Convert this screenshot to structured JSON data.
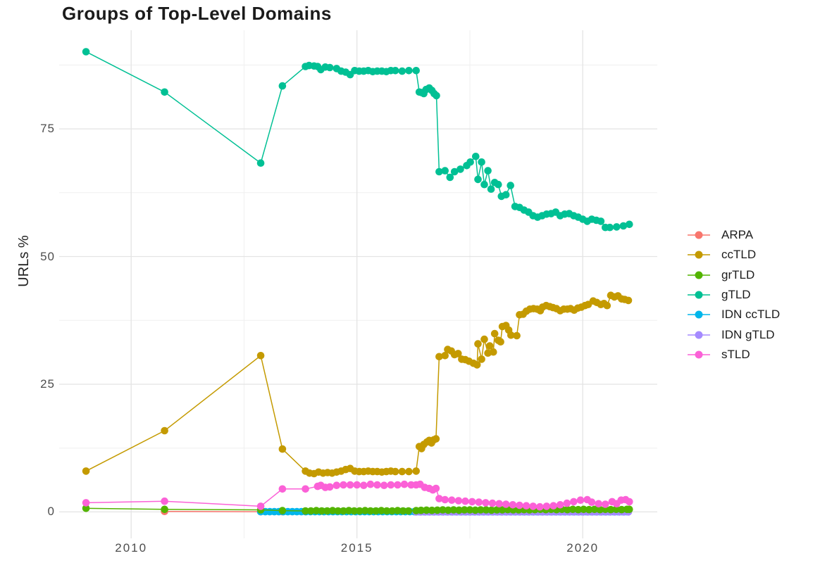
{
  "title": "Groups of Top-Level Domains",
  "y_axis": {
    "label": "URLs %",
    "tick_labels": [
      "0",
      "25",
      "50",
      "75"
    ]
  },
  "x_axis": {
    "tick_labels": [
      "2010",
      "2015",
      "2020"
    ]
  },
  "legend": {
    "items": [
      {
        "label": "ARPA",
        "color": "#F8766D"
      },
      {
        "label": "ccTLD",
        "color": "#C49A00"
      },
      {
        "label": "grTLD",
        "color": "#53B400"
      },
      {
        "label": "gTLD",
        "color": "#00C094"
      },
      {
        "label": "IDN ccTLD",
        "color": "#00B6EB"
      },
      {
        "label": "IDN gTLD",
        "color": "#A58AFF"
      },
      {
        "label": "sTLD",
        "color": "#FB61D7"
      }
    ]
  },
  "chart_data": {
    "type": "line",
    "title": "Groups of Top-Level Domains",
    "xlabel": "",
    "ylabel": "URLs %",
    "xlim": [
      2008.5,
      2021.65
    ],
    "ylim": [
      -3.8,
      94.3
    ],
    "x_ticks": [
      2010,
      2015,
      2020
    ],
    "x_minor": [
      2012.5,
      2017.5
    ],
    "y_ticks": [
      0,
      25,
      50,
      75
    ],
    "y_minor": [
      12.5,
      37.5,
      62.5,
      87.5
    ],
    "grid": true,
    "legend_position": "right",
    "grid_major_color": "#e4e4e4",
    "grid_minor_color": "#efefef",
    "draw_order": [
      "ARPA",
      "IDN ccTLD",
      "IDN gTLD",
      "grTLD",
      "ccTLD",
      "gTLD",
      "sTLD"
    ],
    "series": [
      {
        "name": "ARPA",
        "color": "#F8766D",
        "x": [
          2010.74,
          2012.87,
          2013.35,
          2013.86
        ],
        "y": [
          0.1,
          0.05,
          0.05,
          0.05
        ]
      },
      {
        "name": "ccTLD",
        "color": "#C49A00",
        "x": [
          2009.0,
          2010.74,
          2012.87,
          2013.35,
          2013.86,
          2013.95,
          2014.05,
          2014.15,
          2014.25,
          2014.35,
          2014.45,
          2014.55,
          2014.65,
          2014.75,
          2014.85,
          2014.95,
          2015.05,
          2015.15,
          2015.25,
          2015.35,
          2015.45,
          2015.55,
          2015.65,
          2015.75,
          2015.85,
          2016.0,
          2016.15,
          2016.31,
          2016.38,
          2016.43,
          2016.48,
          2016.55,
          2016.6,
          2016.65,
          2016.7,
          2016.75,
          2016.82,
          2016.95,
          2017.01,
          2017.09,
          2017.16,
          2017.24,
          2017.32,
          2017.4,
          2017.48,
          2017.58,
          2017.66,
          2017.68,
          2017.76,
          2017.82,
          2017.9,
          2017.94,
          2018.02,
          2018.05,
          2018.13,
          2018.18,
          2018.22,
          2018.3,
          2018.36,
          2018.41,
          2018.54,
          2018.6,
          2018.68,
          2018.75,
          2018.83,
          2018.91,
          2018.99,
          2019.06,
          2019.11,
          2019.19,
          2019.27,
          2019.34,
          2019.42,
          2019.5,
          2019.58,
          2019.66,
          2019.73,
          2019.81,
          2019.89,
          2019.97,
          2020.05,
          2020.12,
          2020.23,
          2020.31,
          2020.4,
          2020.47,
          2020.54,
          2020.62,
          2020.7,
          2020.78,
          2020.86,
          2020.93,
          2021.01
        ],
        "y": [
          8.0,
          15.9,
          30.6,
          12.3,
          8.0,
          7.6,
          7.5,
          7.8,
          7.6,
          7.7,
          7.6,
          7.8,
          8.0,
          8.3,
          8.5,
          8.0,
          7.9,
          7.9,
          8.0,
          7.9,
          7.9,
          7.8,
          7.9,
          8.0,
          7.9,
          7.9,
          7.9,
          8.0,
          12.8,
          12.4,
          13.2,
          13.7,
          14.0,
          13.5,
          14.1,
          14.3,
          30.4,
          30.6,
          31.8,
          31.5,
          30.8,
          31.0,
          29.9,
          29.8,
          29.5,
          29.1,
          28.8,
          32.9,
          29.9,
          33.8,
          31.1,
          32.5,
          31.3,
          34.9,
          33.6,
          33.3,
          36.3,
          36.5,
          35.6,
          34.6,
          34.5,
          38.6,
          38.7,
          39.3,
          39.7,
          39.8,
          39.7,
          39.4,
          40.1,
          40.4,
          40.2,
          40.0,
          39.8,
          39.4,
          39.7,
          39.7,
          39.8,
          39.5,
          39.9,
          40.1,
          40.4,
          40.6,
          41.3,
          41.0,
          40.6,
          40.8,
          40.4,
          42.4,
          42.1,
          42.3,
          41.7,
          41.6,
          41.4
        ]
      },
      {
        "name": "grTLD",
        "color": "#53B400",
        "x": [
          2009.0,
          2010.74,
          2012.87,
          2013.35,
          2013.86,
          2013.98,
          2014.1,
          2014.22,
          2014.34,
          2014.46,
          2014.58,
          2014.7,
          2014.82,
          2014.94,
          2015.06,
          2015.18,
          2015.3,
          2015.42,
          2015.54,
          2015.66,
          2015.78,
          2015.9,
          2016.02,
          2016.14,
          2016.31,
          2016.42,
          2016.54,
          2016.66,
          2016.78,
          2016.9,
          2017.02,
          2017.14,
          2017.26,
          2017.38,
          2017.5,
          2017.62,
          2017.74,
          2017.86,
          2017.98,
          2018.1,
          2018.22,
          2018.34,
          2018.46,
          2018.58,
          2018.7,
          2018.82,
          2018.94,
          2019.06,
          2019.18,
          2019.3,
          2019.42,
          2019.54,
          2019.66,
          2019.78,
          2019.9,
          2020.02,
          2020.14,
          2020.26,
          2020.38,
          2020.5,
          2020.62,
          2020.74,
          2020.86,
          2020.98,
          2021.03
        ],
        "y": [
          0.7,
          0.5,
          0.4,
          0.25,
          0.2,
          0.2,
          0.25,
          0.2,
          0.2,
          0.25,
          0.2,
          0.2,
          0.25,
          0.2,
          0.2,
          0.25,
          0.2,
          0.2,
          0.25,
          0.2,
          0.2,
          0.25,
          0.2,
          0.2,
          0.25,
          0.3,
          0.35,
          0.3,
          0.35,
          0.4,
          0.35,
          0.4,
          0.35,
          0.4,
          0.4,
          0.35,
          0.4,
          0.4,
          0.35,
          0.4,
          0.4,
          0.45,
          0.4,
          0.4,
          0.45,
          0.4,
          0.45,
          0.5,
          0.45,
          0.5,
          0.45,
          0.5,
          0.45,
          0.5,
          0.45,
          0.5,
          0.45,
          0.5,
          0.45,
          0.5,
          0.45,
          0.5,
          0.45,
          0.5,
          0.5
        ]
      },
      {
        "name": "gTLD",
        "color": "#00C094",
        "x": [
          2009.0,
          2010.74,
          2012.87,
          2013.35,
          2013.86,
          2013.94,
          2014.05,
          2014.13,
          2014.2,
          2014.3,
          2014.4,
          2014.55,
          2014.65,
          2014.75,
          2014.85,
          2014.95,
          2015.05,
          2015.15,
          2015.25,
          2015.35,
          2015.45,
          2015.55,
          2015.65,
          2015.75,
          2015.85,
          2016.0,
          2016.15,
          2016.31,
          2016.38,
          2016.43,
          2016.48,
          2016.53,
          2016.6,
          2016.66,
          2016.71,
          2016.76,
          2016.82,
          2016.95,
          2017.06,
          2017.16,
          2017.29,
          2017.43,
          2017.51,
          2017.63,
          2017.68,
          2017.76,
          2017.82,
          2017.9,
          2017.97,
          2018.05,
          2018.13,
          2018.2,
          2018.3,
          2018.4,
          2018.5,
          2018.6,
          2018.7,
          2018.8,
          2018.9,
          2019.0,
          2019.1,
          2019.2,
          2019.3,
          2019.4,
          2019.5,
          2019.6,
          2019.7,
          2019.8,
          2019.9,
          2020.0,
          2020.1,
          2020.2,
          2020.3,
          2020.4,
          2020.5,
          2020.6,
          2020.75,
          2020.9,
          2021.03
        ],
        "y": [
          90.1,
          82.2,
          68.3,
          83.4,
          87.2,
          87.4,
          87.3,
          87.2,
          86.6,
          87.1,
          87.0,
          86.8,
          86.3,
          86.1,
          85.6,
          86.4,
          86.3,
          86.3,
          86.4,
          86.2,
          86.3,
          86.3,
          86.2,
          86.4,
          86.4,
          86.3,
          86.4,
          86.4,
          82.2,
          82.1,
          81.9,
          82.7,
          83.0,
          82.5,
          81.9,
          81.5,
          66.6,
          66.8,
          65.5,
          66.6,
          67.1,
          67.8,
          68.5,
          69.6,
          65.1,
          68.5,
          64.1,
          66.8,
          63.2,
          64.5,
          64.1,
          61.8,
          62.1,
          63.9,
          59.8,
          59.6,
          59.1,
          58.7,
          58.0,
          57.7,
          58.0,
          58.3,
          58.4,
          58.7,
          58.0,
          58.3,
          58.4,
          58.0,
          57.7,
          57.3,
          56.9,
          57.3,
          57.1,
          56.9,
          55.7,
          55.7,
          55.8,
          56.0,
          56.3
        ]
      },
      {
        "name": "IDN ccTLD",
        "color": "#00B6EB",
        "flat": {
          "from": 2012.87,
          "to": 2021.03,
          "step": 0.1,
          "value": 0.05
        }
      },
      {
        "name": "IDN gTLD",
        "color": "#A58AFF",
        "flat": {
          "from": 2016.31,
          "to": 2021.03,
          "step": 0.1,
          "value": 0.0
        }
      },
      {
        "name": "sTLD",
        "color": "#FB61D7",
        "x": [
          2009.0,
          2010.74,
          2012.87,
          2013.35,
          2013.86,
          2014.13,
          2014.2,
          2014.3,
          2014.4,
          2014.55,
          2014.7,
          2014.85,
          2015.0,
          2015.15,
          2015.3,
          2015.45,
          2015.6,
          2015.75,
          2015.9,
          2016.05,
          2016.2,
          2016.31,
          2016.4,
          2016.5,
          2016.6,
          2016.68,
          2016.75,
          2016.82,
          2016.95,
          2017.1,
          2017.25,
          2017.4,
          2017.55,
          2017.7,
          2017.85,
          2018.0,
          2018.15,
          2018.3,
          2018.45,
          2018.6,
          2018.75,
          2018.9,
          2019.05,
          2019.2,
          2019.35,
          2019.5,
          2019.65,
          2019.8,
          2019.95,
          2020.1,
          2020.2,
          2020.35,
          2020.5,
          2020.65,
          2020.75,
          2020.85,
          2020.95,
          2021.03
        ],
        "y": [
          1.8,
          2.1,
          1.1,
          4.5,
          4.5,
          5.0,
          5.2,
          4.8,
          4.9,
          5.2,
          5.3,
          5.3,
          5.3,
          5.2,
          5.4,
          5.3,
          5.2,
          5.3,
          5.3,
          5.4,
          5.3,
          5.3,
          5.4,
          4.8,
          4.6,
          4.3,
          4.6,
          2.6,
          2.4,
          2.3,
          2.2,
          2.1,
          2.0,
          1.9,
          1.8,
          1.7,
          1.6,
          1.5,
          1.4,
          1.3,
          1.2,
          1.1,
          1.0,
          1.1,
          1.2,
          1.4,
          1.7,
          2.0,
          2.3,
          2.4,
          1.9,
          1.6,
          1.5,
          2.0,
          1.6,
          2.3,
          2.4,
          2.0
        ]
      }
    ]
  }
}
